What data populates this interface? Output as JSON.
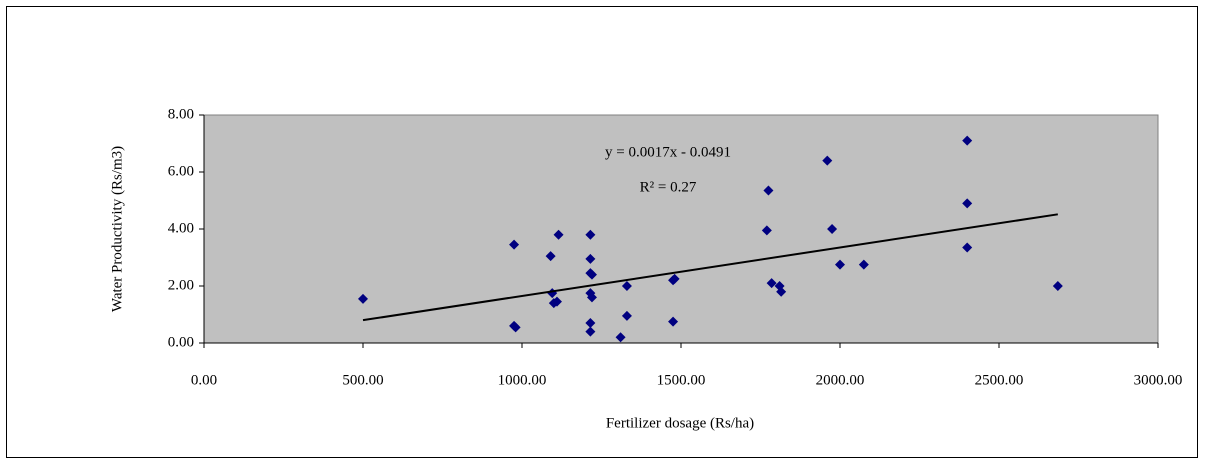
{
  "chart_data": {
    "type": "scatter",
    "x_label": "Fertilizer dosage (Rs/ha)",
    "y_label": "Water Productivity (Rs/m3)",
    "color": "#000080",
    "plot_background": "#c0c0c0",
    "x": [
      500,
      975,
      975,
      980,
      1090,
      1095,
      1100,
      1110,
      1115,
      1215,
      1215,
      1215,
      1220,
      1215,
      1220,
      1215,
      1215,
      1310,
      1330,
      1330,
      1475,
      1480,
      1475,
      1775,
      1770,
      1785,
      1810,
      1815,
      1960,
      1975,
      2000,
      2075,
      2400,
      2400,
      2400,
      2685
    ],
    "values": [
      1.55,
      3.45,
      0.6,
      0.55,
      3.05,
      1.75,
      1.4,
      1.45,
      3.8,
      3.8,
      2.95,
      2.45,
      2.4,
      1.75,
      1.6,
      0.7,
      0.4,
      0.2,
      2.0,
      0.95,
      2.2,
      2.25,
      0.75,
      5.35,
      3.95,
      2.1,
      2.0,
      1.8,
      6.4,
      4.0,
      2.75,
      2.75,
      7.1,
      4.9,
      3.35,
      2.0
    ],
    "xlim": [
      0,
      3000
    ],
    "ylim": [
      0,
      8
    ],
    "xticks": [
      {
        "value": 0,
        "label": "0.00"
      },
      {
        "value": 500,
        "label": "500.00"
      },
      {
        "value": 1000,
        "label": "1000.00"
      },
      {
        "value": 1500,
        "label": "1500.00"
      },
      {
        "value": 2000,
        "label": "2000.00"
      },
      {
        "value": 2500,
        "label": "2500.00"
      },
      {
        "value": 3000,
        "label": "3000.00"
      }
    ],
    "yticks": [
      {
        "value": 0,
        "label": "0.00"
      },
      {
        "value": 2,
        "label": "2.00"
      },
      {
        "value": 4,
        "label": "4.00"
      },
      {
        "value": 6,
        "label": "6.00"
      },
      {
        "value": 8,
        "label": "8.00"
      }
    ],
    "trendline": {
      "slope": 0.0017,
      "intercept": -0.0491,
      "equation": "y = 0.0017x - 0.0491",
      "r_squared": "R² = 0.27",
      "color": "#000000"
    }
  }
}
